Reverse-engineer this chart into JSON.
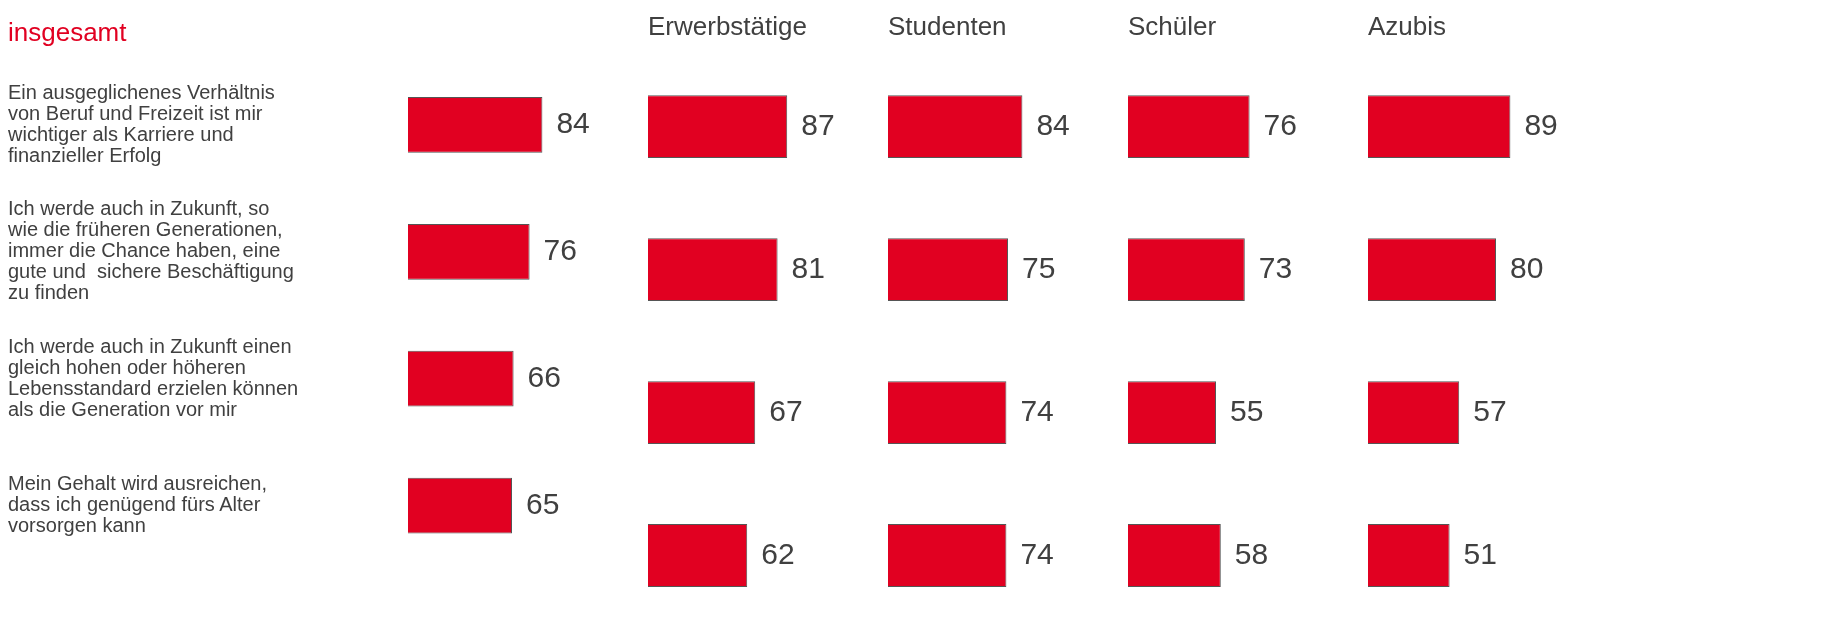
{
  "chart_data": [
    {
      "type": "bar",
      "orientation": "horizontal",
      "title": "insgesamt",
      "categories": [
        "Ein ausgeglichenes Verhältnis von Beruf und Freizeit ist mir wichtiger als Karriere und finanzieller Erfolg",
        "Ich werde auch in Zukunft, so wie die früheren Generationen, immer die Chance haben, eine gute und  sichere Beschäftigung zu finden",
        "Ich werde auch in Zukunft einen gleich hohen oder höheren Lebensstandard erzielen können als die Generation vor mir",
        "Mein Gehalt wird ausreichen, dass ich genügend fürs Alter vorsorgen kann"
      ],
      "values": [
        84,
        76,
        66,
        65
      ],
      "color": "#e10021",
      "data_labels": true,
      "tick_labels": "y",
      "grid": false
    },
    {
      "type": "bar",
      "orientation": "horizontal",
      "title": "Erwerbstätige",
      "categories": [
        null,
        null,
        null,
        null
      ],
      "values": [
        87,
        81,
        67,
        62
      ],
      "color": "#e10021",
      "data_labels": true,
      "tick_labels": false,
      "grid": false
    },
    {
      "type": "bar",
      "orientation": "horizontal",
      "title": "Studenten",
      "categories": [
        null,
        null,
        null,
        null
      ],
      "values": [
        84,
        75,
        74,
        74
      ],
      "color": "#e10021",
      "data_labels": true,
      "tick_labels": false,
      "grid": false
    },
    {
      "type": "bar",
      "orientation": "horizontal",
      "title": "Schüler",
      "categories": [
        null,
        null,
        null,
        null
      ],
      "values": [
        76,
        73,
        55,
        58
      ],
      "color": "#e10021",
      "data_labels": true,
      "tick_labels": false,
      "grid": false
    },
    {
      "type": "bar",
      "orientation": "horizontal",
      "title": "Azubis",
      "categories": [
        null,
        null,
        null,
        null
      ],
      "values": [
        89,
        80,
        57,
        51
      ],
      "color": "#e10021",
      "data_labels": true,
      "tick_labels": false,
      "grid": false
    }
  ]
}
